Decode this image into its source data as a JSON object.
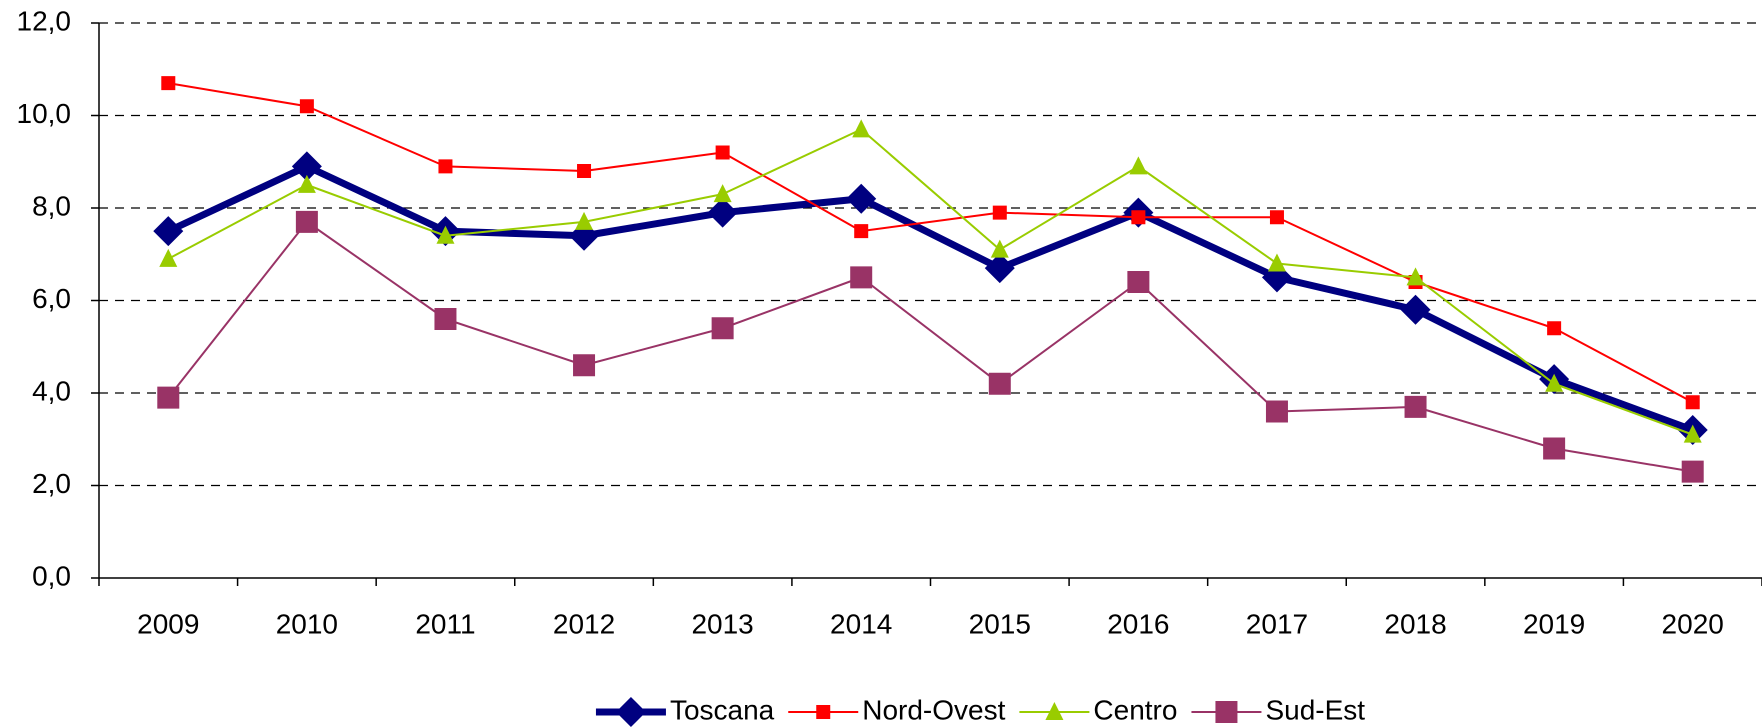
{
  "chart_data": {
    "type": "line",
    "categories": [
      "2009",
      "2010",
      "2011",
      "2012",
      "2013",
      "2014",
      "2015",
      "2016",
      "2017",
      "2018",
      "2019",
      "2020"
    ],
    "series": [
      {
        "name": "Toscana",
        "color": "#000080",
        "marker": "diamond",
        "line_width": 7,
        "values": [
          7.5,
          8.9,
          7.5,
          7.4,
          7.9,
          8.2,
          6.7,
          7.9,
          6.5,
          5.8,
          4.3,
          3.2
        ]
      },
      {
        "name": "Nord-Ovest",
        "color": "#ff0000",
        "marker": "square",
        "line_width": 2,
        "values": [
          10.7,
          10.2,
          8.9,
          8.8,
          9.2,
          7.5,
          7.9,
          7.8,
          7.8,
          6.4,
          5.4,
          3.8
        ]
      },
      {
        "name": "Centro",
        "color": "#99cc00",
        "marker": "triangle",
        "line_width": 2,
        "values": [
          6.9,
          8.5,
          7.4,
          7.7,
          8.3,
          9.7,
          7.1,
          8.9,
          6.8,
          6.5,
          4.2,
          3.1
        ]
      },
      {
        "name": "Sud-Est",
        "color": "#993366",
        "marker": "bigsquare",
        "line_width": 2,
        "values": [
          3.9,
          7.7,
          5.6,
          4.6,
          5.4,
          6.5,
          4.2,
          6.4,
          3.6,
          3.7,
          2.8,
          2.3
        ]
      }
    ],
    "ylim": [
      0,
      12
    ],
    "yticks": [
      {
        "value": 0,
        "label": "0,0"
      },
      {
        "value": 2,
        "label": "2,0"
      },
      {
        "value": 4,
        "label": "4,0"
      },
      {
        "value": 6,
        "label": "6,0"
      },
      {
        "value": 8,
        "label": "8,0"
      },
      {
        "value": 10,
        "label": "10,0"
      },
      {
        "value": 12,
        "label": "12,0"
      }
    ],
    "grid": true,
    "legend": "bottom"
  }
}
